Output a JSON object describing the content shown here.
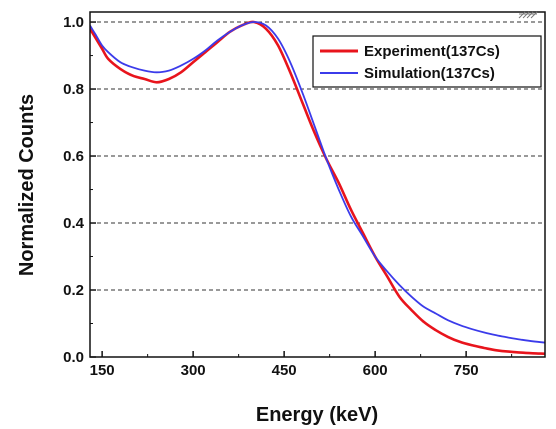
{
  "chart_data": {
    "type": "line",
    "xlabel": "Energy (keV)",
    "ylabel": "Normalized Counts",
    "xlim": [
      130,
      880
    ],
    "ylim": [
      0.0,
      1.03
    ],
    "xticks": [
      150,
      300,
      450,
      600,
      750
    ],
    "xtick_labels": [
      "150",
      "300",
      "450",
      "600",
      "750"
    ],
    "yticks": [
      0.0,
      0.2,
      0.4,
      0.6,
      0.8,
      1.0
    ],
    "ytick_labels": [
      "0.0",
      "0.2",
      "0.4",
      "0.6",
      "0.8",
      "1.0"
    ],
    "grid": "horizontal-dashed",
    "legend_position": "top-right",
    "series": [
      {
        "name": "Experiment(137Cs)",
        "color": "#e8141c",
        "x": [
          130,
          140,
          150,
          160,
          180,
          200,
          220,
          240,
          260,
          280,
          300,
          320,
          340,
          360,
          380,
          400,
          420,
          440,
          460,
          480,
          500,
          520,
          540,
          560,
          580,
          600,
          620,
          640,
          660,
          680,
          700,
          720,
          740,
          760,
          780,
          800,
          820,
          840,
          860,
          880
        ],
        "y": [
          0.98,
          0.95,
          0.92,
          0.89,
          0.86,
          0.84,
          0.83,
          0.82,
          0.83,
          0.85,
          0.88,
          0.91,
          0.94,
          0.97,
          0.99,
          1.0,
          0.98,
          0.93,
          0.85,
          0.76,
          0.67,
          0.59,
          0.52,
          0.44,
          0.37,
          0.3,
          0.24,
          0.18,
          0.14,
          0.105,
          0.08,
          0.06,
          0.045,
          0.035,
          0.027,
          0.02,
          0.016,
          0.013,
          0.011,
          0.01
        ]
      },
      {
        "name": "Simulation(137Cs)",
        "color": "#3b3bea",
        "x": [
          130,
          140,
          150,
          160,
          180,
          200,
          220,
          240,
          260,
          280,
          300,
          320,
          340,
          360,
          380,
          400,
          420,
          440,
          460,
          480,
          500,
          520,
          540,
          560,
          580,
          600,
          620,
          640,
          660,
          680,
          700,
          720,
          740,
          760,
          780,
          800,
          820,
          840,
          860,
          880
        ],
        "y": [
          0.99,
          0.96,
          0.93,
          0.91,
          0.88,
          0.865,
          0.855,
          0.85,
          0.855,
          0.87,
          0.89,
          0.915,
          0.945,
          0.97,
          0.99,
          1.0,
          0.99,
          0.95,
          0.88,
          0.79,
          0.69,
          0.59,
          0.5,
          0.42,
          0.36,
          0.3,
          0.255,
          0.215,
          0.18,
          0.15,
          0.13,
          0.11,
          0.095,
          0.083,
          0.073,
          0.065,
          0.058,
          0.052,
          0.047,
          0.043
        ]
      }
    ]
  }
}
